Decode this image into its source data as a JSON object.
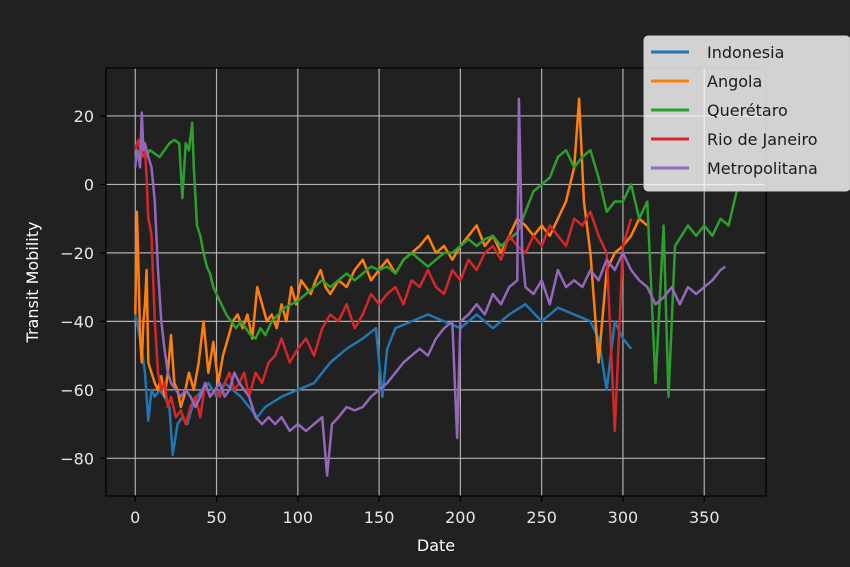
{
  "chart_data": {
    "type": "line",
    "title": "",
    "xlabel": "Date",
    "ylabel": "Transit Mobility",
    "xlim": [
      -18,
      388
    ],
    "ylim": [
      -91,
      34
    ],
    "xticks": [
      0,
      50,
      100,
      150,
      200,
      250,
      300,
      350
    ],
    "yticks": [
      -80,
      -60,
      -40,
      -20,
      0,
      20
    ],
    "grid": true,
    "legend_position": "top-right",
    "background": "#212121",
    "series": [
      {
        "name": "Indonesia",
        "color": "#1f77b4",
        "x": [
          0,
          3,
          6,
          8,
          10,
          12,
          15,
          18,
          21,
          23,
          26,
          29,
          32,
          35,
          38,
          41,
          45,
          50,
          55,
          60,
          65,
          70,
          75,
          80,
          90,
          100,
          110,
          120,
          130,
          140,
          148,
          152,
          155,
          160,
          170,
          180,
          190,
          200,
          210,
          220,
          230,
          240,
          250,
          260,
          270,
          280,
          285,
          290,
          295,
          300,
          305
        ],
        "y": [
          -38,
          -45,
          -55,
          -69,
          -60,
          -62,
          -60,
          -62,
          -65,
          -79,
          -70,
          -68,
          -70,
          -65,
          -62,
          -60,
          -58,
          -62,
          -58,
          -60,
          -62,
          -65,
          -68,
          -65,
          -62,
          -60,
          -58,
          -52,
          -48,
          -45,
          -42,
          -62,
          -48,
          -42,
          -40,
          -38,
          -40,
          -42,
          -38,
          -42,
          -38,
          -35,
          -40,
          -36,
          -38,
          -40,
          -45,
          -60,
          -40,
          -45,
          -48
        ]
      },
      {
        "name": "Angola",
        "color": "#ff7f0e",
        "x": [
          0,
          1,
          2,
          3,
          4,
          5,
          6,
          7,
          8,
          10,
          12,
          14,
          16,
          18,
          20,
          22,
          24,
          26,
          28,
          30,
          33,
          36,
          39,
          42,
          45,
          48,
          51,
          54,
          57,
          60,
          63,
          66,
          69,
          72,
          75,
          78,
          81,
          84,
          87,
          90,
          93,
          96,
          99,
          102,
          105,
          108,
          111,
          114,
          117,
          120,
          125,
          130,
          135,
          140,
          145,
          150,
          155,
          160,
          165,
          170,
          175,
          180,
          185,
          190,
          195,
          200,
          205,
          210,
          215,
          220,
          225,
          230,
          235,
          240,
          245,
          250,
          255,
          260,
          265,
          270,
          273,
          276,
          280,
          285,
          290,
          295,
          300,
          305,
          310,
          315
        ],
        "y": [
          -38,
          -8,
          -25,
          -45,
          -52,
          -40,
          -35,
          -25,
          -52,
          -55,
          -58,
          -60,
          -56,
          -62,
          -55,
          -44,
          -58,
          -60,
          -65,
          -62,
          -55,
          -60,
          -52,
          -40,
          -55,
          -46,
          -58,
          -50,
          -45,
          -40,
          -38,
          -42,
          -38,
          -45,
          -30,
          -35,
          -40,
          -38,
          -42,
          -35,
          -40,
          -30,
          -35,
          -28,
          -30,
          -32,
          -28,
          -25,
          -30,
          -32,
          -28,
          -30,
          -25,
          -22,
          -28,
          -25,
          -22,
          -26,
          -22,
          -20,
          -18,
          -15,
          -20,
          -18,
          -22,
          -18,
          -15,
          -12,
          -18,
          -15,
          -20,
          -15,
          -10,
          -12,
          -15,
          -12,
          -15,
          -10,
          -5,
          5,
          25,
          -5,
          -20,
          -52,
          -25,
          -20,
          -18,
          -15,
          -10,
          -12
        ]
      },
      {
        "name": "Querétaro",
        "color": "#2ca02c",
        "x": [
          0,
          3,
          6,
          9,
          12,
          15,
          18,
          21,
          24,
          27,
          29,
          31,
          33,
          35,
          36,
          38,
          40,
          42,
          44,
          46,
          48,
          50,
          53,
          56,
          59,
          62,
          65,
          68,
          71,
          74,
          77,
          80,
          84,
          88,
          92,
          96,
          100,
          105,
          110,
          115,
          120,
          125,
          130,
          135,
          140,
          145,
          150,
          155,
          160,
          165,
          170,
          175,
          180,
          185,
          190,
          195,
          200,
          205,
          210,
          215,
          220,
          225,
          230,
          235,
          240,
          245,
          250,
          255,
          260,
          265,
          270,
          275,
          280,
          285,
          290,
          295,
          300,
          305,
          310,
          315,
          320,
          325,
          328,
          332,
          336,
          340,
          345,
          350,
          355,
          360,
          365,
          370
        ],
        "y": [
          8,
          10,
          8,
          10,
          9,
          8,
          10,
          12,
          13,
          12,
          -4,
          12,
          10,
          18,
          5,
          -12,
          -15,
          -20,
          -24,
          -26,
          -30,
          -32,
          -35,
          -38,
          -40,
          -42,
          -40,
          -42,
          -44,
          -45,
          -42,
          -44,
          -40,
          -38,
          -36,
          -35,
          -34,
          -32,
          -30,
          -28,
          -30,
          -28,
          -26,
          -28,
          -26,
          -24,
          -25,
          -24,
          -26,
          -22,
          -20,
          -22,
          -24,
          -22,
          -20,
          -20,
          -18,
          -16,
          -18,
          -16,
          -15,
          -18,
          -16,
          -14,
          -8,
          -2,
          0,
          2,
          8,
          10,
          5,
          8,
          10,
          2,
          -8,
          -5,
          -5,
          0,
          -10,
          -5,
          -58,
          -12,
          -62,
          -18,
          -15,
          -12,
          -15,
          -12,
          -15,
          -10,
          -12,
          -2
        ]
      },
      {
        "name": "Rio de Janeiro",
        "color": "#d62728",
        "x": [
          0,
          1,
          2,
          3,
          4,
          5,
          6,
          7,
          8,
          9,
          10,
          12,
          14,
          16,
          18,
          20,
          22,
          25,
          28,
          31,
          34,
          37,
          40,
          43,
          46,
          49,
          52,
          55,
          58,
          61,
          64,
          67,
          70,
          74,
          78,
          82,
          86,
          90,
          95,
          100,
          105,
          110,
          115,
          120,
          125,
          130,
          135,
          140,
          145,
          150,
          155,
          160,
          165,
          170,
          175,
          180,
          185,
          190,
          195,
          200,
          205,
          210,
          215,
          220,
          225,
          230,
          235,
          240,
          245,
          250,
          255,
          260,
          265,
          270,
          275,
          280,
          285,
          290,
          295,
          300,
          305
        ],
        "y": [
          10,
          12,
          13,
          10,
          8,
          12,
          10,
          2,
          -10,
          -12,
          -15,
          -40,
          -55,
          -60,
          -58,
          -65,
          -62,
          -68,
          -66,
          -70,
          -65,
          -62,
          -68,
          -58,
          -62,
          -60,
          -62,
          -58,
          -55,
          -60,
          -58,
          -55,
          -62,
          -55,
          -58,
          -52,
          -50,
          -45,
          -52,
          -48,
          -45,
          -50,
          -42,
          -38,
          -40,
          -35,
          -42,
          -38,
          -32,
          -35,
          -32,
          -30,
          -35,
          -28,
          -30,
          -25,
          -30,
          -32,
          -25,
          -28,
          -22,
          -25,
          -20,
          -18,
          -22,
          -15,
          -18,
          -20,
          -15,
          -18,
          -12,
          -15,
          -18,
          -10,
          -12,
          -8,
          -15,
          -20,
          -72,
          -18,
          -10
        ]
      },
      {
        "name": "Metropolitana",
        "color": "#9467bd",
        "x": [
          0,
          1,
          2,
          3,
          4,
          5,
          6,
          7,
          8,
          10,
          12,
          14,
          16,
          18,
          20,
          22,
          25,
          28,
          31,
          34,
          37,
          40,
          43,
          46,
          49,
          52,
          55,
          58,
          61,
          64,
          67,
          70,
          74,
          78,
          82,
          86,
          90,
          95,
          100,
          105,
          110,
          115,
          118,
          121,
          125,
          130,
          135,
          140,
          145,
          150,
          155,
          160,
          165,
          170,
          175,
          180,
          185,
          190,
          195,
          198,
          200,
          205,
          210,
          215,
          220,
          225,
          230,
          235,
          236,
          238,
          240,
          245,
          250,
          255,
          260,
          265,
          270,
          275,
          280,
          285,
          290,
          295,
          300,
          305,
          310,
          315,
          320,
          325,
          330,
          335,
          340,
          345,
          350,
          355,
          360,
          363
        ],
        "y": [
          5,
          10,
          8,
          5,
          21,
          10,
          12,
          10,
          8,
          5,
          -5,
          -25,
          -40,
          -48,
          -55,
          -58,
          -60,
          -62,
          -60,
          -62,
          -65,
          -62,
          -58,
          -62,
          -60,
          -58,
          -62,
          -60,
          -55,
          -58,
          -60,
          -62,
          -68,
          -70,
          -68,
          -70,
          -68,
          -72,
          -70,
          -72,
          -70,
          -68,
          -85,
          -70,
          -68,
          -65,
          -66,
          -65,
          -62,
          -60,
          -58,
          -55,
          -52,
          -50,
          -48,
          -50,
          -45,
          -42,
          -40,
          -74,
          -40,
          -38,
          -35,
          -38,
          -32,
          -35,
          -30,
          -28,
          25,
          -20,
          -30,
          -32,
          -28,
          -35,
          -25,
          -30,
          -28,
          -30,
          -25,
          -28,
          -22,
          -25,
          -20,
          -25,
          -28,
          -30,
          -35,
          -33,
          -30,
          -35,
          -30,
          -32,
          -30,
          -28,
          -25,
          -24
        ]
      }
    ]
  }
}
